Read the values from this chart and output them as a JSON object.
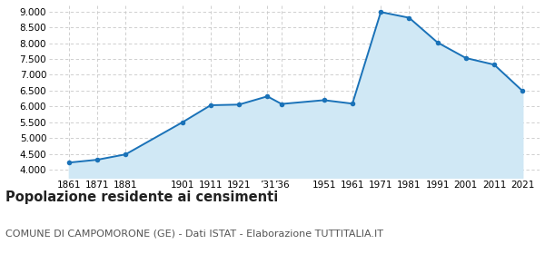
{
  "years": [
    1861,
    1871,
    1881,
    1901,
    1911,
    1921,
    1931,
    1936,
    1951,
    1961,
    1971,
    1981,
    1991,
    2001,
    2011,
    2021
  ],
  "x_labels": [
    "1861",
    "1871",
    "1881",
    "1901",
    "1911",
    "1921",
    "’31′36",
    "1951",
    "1961",
    "1971",
    "1981",
    "1991",
    "2001",
    "2011",
    "2021"
  ],
  "x_label_years": [
    1861,
    1871,
    1881,
    1901,
    1911,
    1921,
    1933,
    1951,
    1961,
    1971,
    1981,
    1991,
    2001,
    2011,
    2021
  ],
  "population": [
    4230,
    4320,
    4490,
    5500,
    6040,
    6060,
    6320,
    6080,
    6200,
    6090,
    8980,
    8800,
    8020,
    7530,
    7320,
    6490
  ],
  "line_color": "#1a72b8",
  "fill_color": "#d0e8f5",
  "marker_color": "#1a72b8",
  "background_color": "#ffffff",
  "grid_color": "#c8c8c8",
  "ylim": [
    3750,
    9200
  ],
  "yticks": [
    4000,
    4500,
    5000,
    5500,
    6000,
    6500,
    7000,
    7500,
    8000,
    8500,
    9000
  ],
  "title": "Popolazione residente ai censimenti",
  "subtitle": "COMUNE DI CAMPOMORONE (GE) - Dati ISTAT - Elaborazione TUTTITALIA.IT",
  "title_fontsize": 10.5,
  "subtitle_fontsize": 8.0
}
